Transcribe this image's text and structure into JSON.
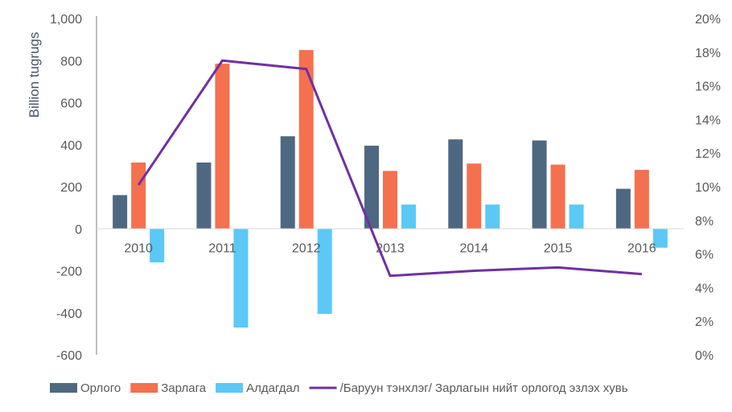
{
  "chart_data": {
    "type": "bar",
    "categories": [
      "2010",
      "2011",
      "2012",
      "2013",
      "2014",
      "2015",
      "2016"
    ],
    "series": [
      {
        "name": "Орлого",
        "type": "bar",
        "axis": "left",
        "color": "#4f6882",
        "values": [
          160,
          315,
          440,
          395,
          425,
          420,
          190
        ]
      },
      {
        "name": "Зарлага",
        "type": "bar",
        "axis": "left",
        "color": "#f4704f",
        "values": [
          315,
          785,
          850,
          275,
          310,
          305,
          280
        ]
      },
      {
        "name": "Алдагдал",
        "type": "bar",
        "axis": "left",
        "color": "#5bc8f5",
        "values": [
          -160,
          -470,
          -405,
          115,
          115,
          115,
          -90
        ]
      },
      {
        "name": "/Баруун тэнхлэг/ Зарлагын нийт орлогод эзлэх хувь",
        "type": "line",
        "axis": "right",
        "color": "#7030a0",
        "values": [
          10.1,
          17.5,
          17.0,
          4.7,
          5.0,
          5.2,
          4.8
        ]
      }
    ],
    "ylabel": "Billion tugrugs",
    "ylim": [
      -600,
      1000
    ],
    "yticks": [
      "-600",
      "-400",
      "-200",
      "0",
      "200",
      "400",
      "600",
      "800",
      "1,000"
    ],
    "y2lim": [
      0,
      20
    ],
    "y2ticks": [
      "0%",
      "2%",
      "4%",
      "6%",
      "8%",
      "10%",
      "12%",
      "14%",
      "16%",
      "18%",
      "20%"
    ],
    "grid": false,
    "legend": "bottom"
  }
}
